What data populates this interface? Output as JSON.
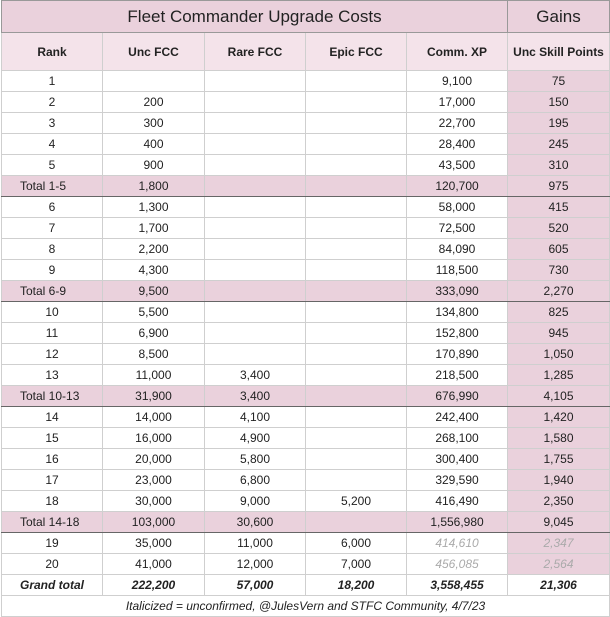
{
  "header": {
    "title": "Fleet Commander Upgrade Costs",
    "gains": "Gains"
  },
  "table": {
    "columns": [
      "Rank",
      "Unc FCC",
      "Rare FCC",
      "Epic FCC",
      "Comm. XP",
      "Unc Skill Points"
    ],
    "groups": [
      {
        "rows": [
          [
            "1",
            null,
            null,
            null,
            "9,100",
            "75"
          ],
          [
            "2",
            "200",
            null,
            null,
            "17,000",
            "150"
          ],
          [
            "3",
            "300",
            null,
            null,
            "22,700",
            "195"
          ],
          [
            "4",
            "400",
            null,
            null,
            "28,400",
            "245"
          ],
          [
            "5",
            "900",
            null,
            null,
            "43,500",
            "310"
          ]
        ],
        "total": [
          "Total 1-5",
          "1,800",
          null,
          null,
          "120,700",
          "975"
        ]
      },
      {
        "rows": [
          [
            "6",
            "1,300",
            null,
            null,
            "58,000",
            "415"
          ],
          [
            "7",
            "1,700",
            null,
            null,
            "72,500",
            "520"
          ],
          [
            "8",
            "2,200",
            null,
            null,
            "84,090",
            "605"
          ],
          [
            "9",
            "4,300",
            null,
            null,
            "118,500",
            "730"
          ]
        ],
        "total": [
          "Total 6-9",
          "9,500",
          null,
          null,
          "333,090",
          "2,270"
        ]
      },
      {
        "rows": [
          [
            "10",
            "5,500",
            null,
            null,
            "134,800",
            "825"
          ],
          [
            "11",
            "6,900",
            null,
            null,
            "152,800",
            "945"
          ],
          [
            "12",
            "8,500",
            null,
            null,
            "170,890",
            "1,050"
          ],
          [
            "13",
            "11,000",
            "3,400",
            null,
            "218,500",
            "1,285"
          ]
        ],
        "total": [
          "Total 10-13",
          "31,900",
          "3,400",
          null,
          "676,990",
          "4,105"
        ]
      },
      {
        "rows": [
          [
            "14",
            "14,000",
            "4,100",
            null,
            "242,400",
            "1,420"
          ],
          [
            "15",
            "16,000",
            "4,900",
            null,
            "268,100",
            "1,580"
          ],
          [
            "16",
            "20,000",
            "5,800",
            null,
            "300,400",
            "1,755"
          ],
          [
            "17",
            "23,000",
            "6,800",
            null,
            "329,590",
            "1,940"
          ],
          [
            "18",
            "30,000",
            "9,000",
            "5,200",
            "416,490",
            "2,350"
          ]
        ],
        "total": [
          "Total 14-18",
          "103,000",
          "30,600",
          null,
          "1,556,980",
          "9,045"
        ]
      },
      {
        "rows": [
          [
            "19",
            "35,000",
            "11,000",
            "6,000",
            "414,610",
            "2,347"
          ],
          [
            "20",
            "41,000",
            "12,000",
            "7,000",
            "456,085",
            "2,564"
          ]
        ],
        "total": [
          "Grand total",
          "222,200",
          "57,000",
          "18,200",
          "3,558,455",
          "21,306"
        ]
      }
    ],
    "footnote": "Italicized = unconfirmed, @JulesVern and STFC Community, 4/7/23"
  }
}
